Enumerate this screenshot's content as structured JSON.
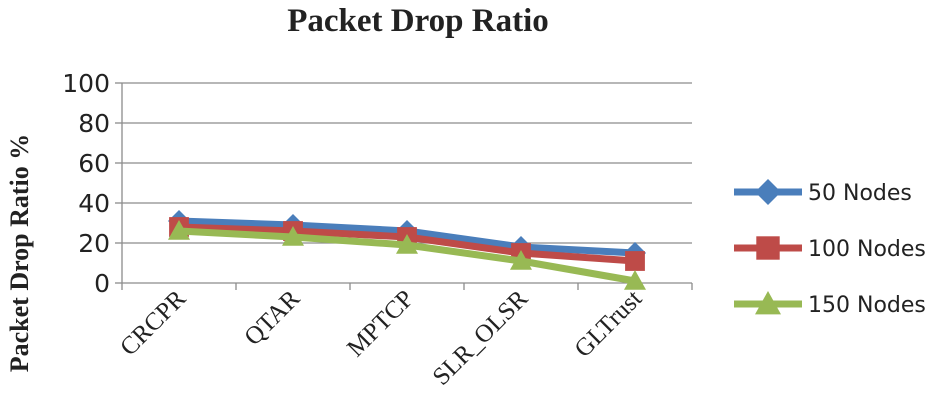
{
  "chart_data": {
    "type": "line",
    "title": "Packet Drop Ratio",
    "ylabel": "Packet Drop Ratio %",
    "xlabel": "",
    "categories": [
      "CRCPR",
      "QTAR",
      "MPTCP",
      "SLR_OLSR",
      "GLTrust"
    ],
    "ylim": [
      0,
      100
    ],
    "yticks": [
      0,
      20,
      40,
      60,
      80,
      100
    ],
    "grid": true,
    "legend_position": "right",
    "series": [
      {
        "name": "50 Nodes",
        "values": [
          31,
          29,
          26,
          18,
          15
        ],
        "color": "#4a7ebb",
        "marker": "diamond"
      },
      {
        "name": "100 Nodes",
        "values": [
          28,
          26,
          23,
          15,
          11
        ],
        "color": "#be4b48",
        "marker": "square"
      },
      {
        "name": "150 Nodes",
        "values": [
          26,
          23,
          19,
          11,
          1
        ],
        "color": "#98b954",
        "marker": "triangle"
      }
    ]
  }
}
